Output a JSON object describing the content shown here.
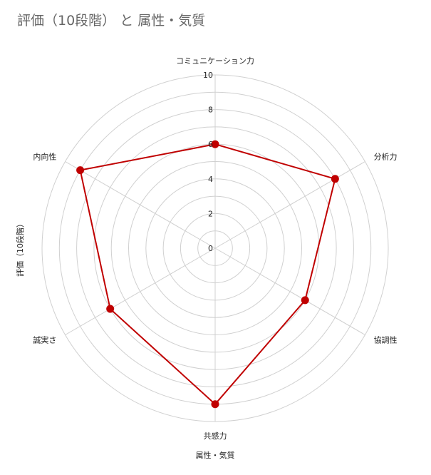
{
  "chart_data": {
    "type": "radar",
    "title": "評価（10段階） と 属性・気質",
    "xlabel": "属性・気質",
    "ylabel": "評価（10段階）",
    "categories": [
      "コミュニケーション力",
      "分析力",
      "協調性",
      "共感力",
      "誠実さ",
      "内向性"
    ],
    "series": [
      {
        "values": [
          6,
          8,
          6,
          9,
          7,
          9
        ],
        "color": "#c00000"
      }
    ],
    "rlim": [
      0,
      10
    ],
    "ticks": [
      0,
      2,
      4,
      6,
      8,
      10
    ],
    "grid": true,
    "colors": {
      "grid": "#d0d0d0",
      "series": "#c00000",
      "title": "#666666"
    }
  }
}
